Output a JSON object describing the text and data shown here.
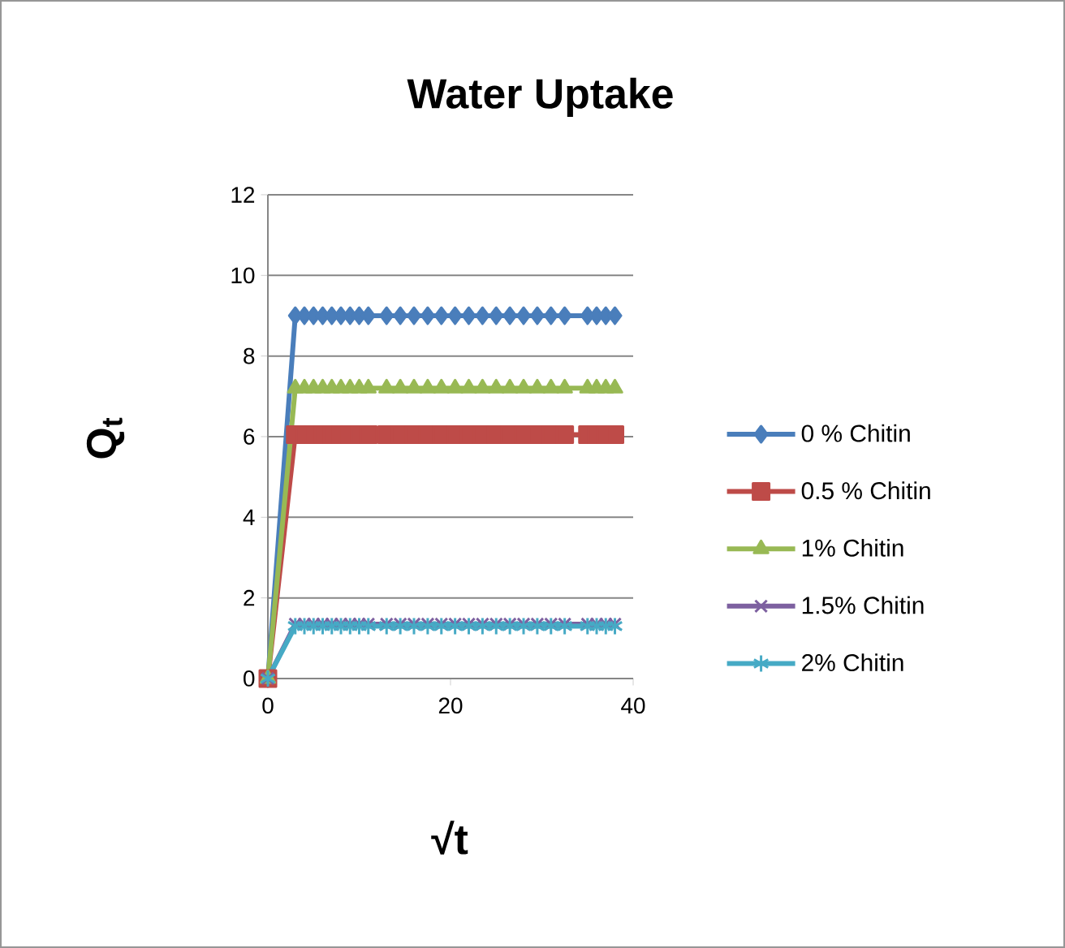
{
  "chart_data": {
    "type": "line",
    "title": "Water Uptake",
    "xlabel": "√t",
    "ylabel": "Q$_{t}$",
    "x": [
      0,
      3,
      4,
      5,
      6,
      7,
      8,
      9,
      10,
      11,
      13,
      14.5,
      16,
      17.5,
      19,
      20.5,
      22,
      23.5,
      25,
      26.5,
      28,
      29.5,
      31,
      32.5,
      35,
      36,
      37,
      38
    ],
    "series": [
      {
        "name": "0 % Chitin",
        "color": "#4a7ebb",
        "marker": "diamond",
        "values": [
          0,
          9,
          9,
          9,
          9,
          9,
          9,
          9,
          9,
          9,
          9,
          9,
          9,
          9,
          9,
          9,
          9,
          9,
          9,
          9,
          9,
          9,
          9,
          9,
          9,
          9,
          9,
          9
        ]
      },
      {
        "name": "0.5 % Chitin",
        "color": "#be4b48",
        "marker": "square",
        "values": [
          0,
          6.05,
          6.05,
          6.05,
          6.05,
          6.05,
          6.05,
          6.05,
          6.05,
          6.05,
          6.05,
          6.05,
          6.05,
          6.05,
          6.05,
          6.05,
          6.05,
          6.05,
          6.05,
          6.05,
          6.05,
          6.05,
          6.05,
          6.05,
          6.05,
          6.05,
          6.05,
          6.05
        ]
      },
      {
        "name": "1% Chitin",
        "color": "#98b954",
        "marker": "triangle",
        "values": [
          0,
          7.2,
          7.2,
          7.2,
          7.2,
          7.2,
          7.2,
          7.2,
          7.2,
          7.2,
          7.2,
          7.2,
          7.2,
          7.2,
          7.2,
          7.2,
          7.2,
          7.2,
          7.2,
          7.2,
          7.2,
          7.2,
          7.2,
          7.2,
          7.2,
          7.2,
          7.2,
          7.2
        ]
      },
      {
        "name": "1.5% Chitin",
        "color": "#7d60a0",
        "marker": "cross",
        "values": [
          0,
          1.35,
          1.35,
          1.35,
          1.35,
          1.35,
          1.35,
          1.35,
          1.35,
          1.35,
          1.35,
          1.35,
          1.35,
          1.35,
          1.35,
          1.35,
          1.35,
          1.35,
          1.35,
          1.35,
          1.35,
          1.35,
          1.35,
          1.35,
          1.35,
          1.35,
          1.35,
          1.35
        ]
      },
      {
        "name": "2% Chitin",
        "color": "#46aac5",
        "marker": "cross",
        "values": [
          0,
          1.3,
          1.3,
          1.3,
          1.3,
          1.3,
          1.3,
          1.3,
          1.3,
          1.3,
          1.3,
          1.3,
          1.3,
          1.3,
          1.3,
          1.3,
          1.3,
          1.3,
          1.3,
          1.3,
          1.3,
          1.3,
          1.3,
          1.3,
          1.3,
          1.3,
          1.3,
          1.3
        ]
      }
    ],
    "xlim": [
      0,
      40
    ],
    "xticks": [
      0,
      20,
      40
    ],
    "ylim": [
      0,
      12
    ],
    "yticks": [
      0,
      2,
      4,
      6,
      8,
      10,
      12
    ],
    "grid": "y",
    "legend": "right",
    "line_style": "solid"
  }
}
